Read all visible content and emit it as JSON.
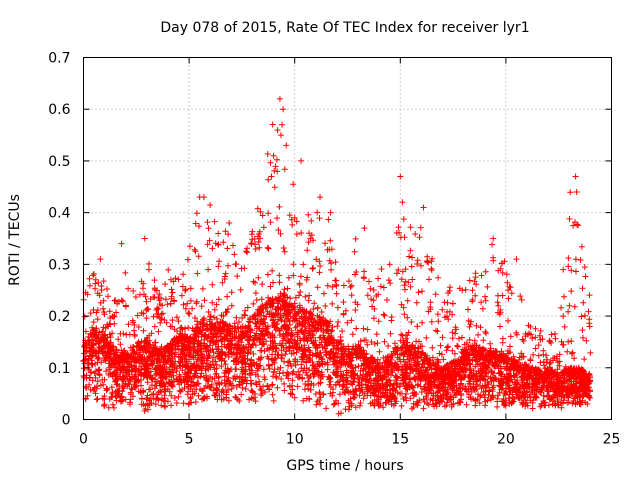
{
  "chart_data": {
    "type": "scatter",
    "title": "Day 078 of 2015, Rate Of TEC Index for receiver lyr1",
    "xlabel": "GPS time / hours",
    "ylabel": "ROTI / TECUs",
    "xlim": [
      0,
      25
    ],
    "ylim": [
      0,
      0.7
    ],
    "xticks": [
      0,
      5,
      10,
      15,
      20,
      25
    ],
    "yticks": [
      0,
      0.1,
      0.2,
      0.3,
      0.4,
      0.5,
      0.6,
      0.7
    ],
    "xtick_labels": [
      "0",
      "5",
      "10",
      "15",
      "20",
      "25"
    ],
    "ytick_labels": [
      "0",
      "0.1",
      "0.2",
      "0.3",
      "0.4",
      "0.5",
      "0.6",
      "0.7"
    ],
    "grid": true,
    "marker": "+",
    "color": "#ff0000",
    "data_extent_hours": [
      0,
      24
    ],
    "series": [
      {
        "name": "lyr1",
        "envelope": {
          "x": [
            0,
            0.5,
            1,
            1.5,
            2,
            2.5,
            3,
            3.5,
            4,
            4.5,
            5,
            5.5,
            6,
            6.5,
            7,
            7.5,
            8,
            8.5,
            9,
            9.5,
            10,
            10.5,
            11,
            11.5,
            12,
            12.5,
            13,
            13.5,
            14,
            14.5,
            15,
            15.5,
            16,
            16.5,
            17,
            17.5,
            18,
            18.5,
            19,
            19.5,
            20,
            20.5,
            21,
            21.5,
            22,
            22.5,
            23,
            23.5,
            24
          ],
          "typical": [
            0.13,
            0.16,
            0.15,
            0.12,
            0.12,
            0.13,
            0.14,
            0.12,
            0.13,
            0.15,
            0.14,
            0.17,
            0.18,
            0.17,
            0.16,
            0.16,
            0.18,
            0.2,
            0.21,
            0.22,
            0.2,
            0.19,
            0.18,
            0.17,
            0.14,
            0.12,
            0.13,
            0.11,
            0.1,
            0.11,
            0.14,
            0.13,
            0.12,
            0.1,
            0.09,
            0.1,
            0.12,
            0.13,
            0.12,
            0.12,
            0.11,
            0.1,
            0.09,
            0.09,
            0.09,
            0.08,
            0.09,
            0.09,
            0.08
          ],
          "max": [
            0.26,
            0.31,
            0.27,
            0.23,
            0.34,
            0.26,
            0.36,
            0.26,
            0.29,
            0.28,
            0.36,
            0.43,
            0.42,
            0.36,
            0.38,
            0.34,
            0.41,
            0.45,
            0.62,
            0.5,
            0.5,
            0.44,
            0.42,
            0.4,
            0.33,
            0.31,
            0.37,
            0.3,
            0.31,
            0.3,
            0.47,
            0.42,
            0.41,
            0.33,
            0.25,
            0.26,
            0.29,
            0.3,
            0.33,
            0.35,
            0.3,
            0.31,
            0.2,
            0.19,
            0.19,
            0.17,
            0.47,
            0.42,
            0.23
          ],
          "min": [
            0.04,
            0.03,
            0.02,
            0.02,
            0.03,
            0.02,
            0.01,
            0.02,
            0.02,
            0.02,
            0.02,
            0.02,
            0.03,
            0.03,
            0.02,
            0.03,
            0.03,
            0.03,
            0.03,
            0.03,
            0.03,
            0.02,
            0.02,
            0.02,
            0.01,
            0.01,
            0.02,
            0.02,
            0.02,
            0.02,
            0.02,
            0.02,
            0.02,
            0.02,
            0.02,
            0.02,
            0.02,
            0.02,
            0.02,
            0.02,
            0.02,
            0.02,
            0.02,
            0.02,
            0.02,
            0.02,
            0.02,
            0.02,
            0.03
          ]
        },
        "notable_points": [
          {
            "x": 9.3,
            "y": 0.62
          },
          {
            "x": 9.45,
            "y": 0.6
          },
          {
            "x": 9.4,
            "y": 0.57
          },
          {
            "x": 9.35,
            "y": 0.55
          },
          {
            "x": 9.0,
            "y": 0.51
          },
          {
            "x": 9.6,
            "y": 0.53
          },
          {
            "x": 10.3,
            "y": 0.5
          },
          {
            "x": 8.9,
            "y": 0.47
          },
          {
            "x": 15.0,
            "y": 0.47
          },
          {
            "x": 23.3,
            "y": 0.47
          },
          {
            "x": 23.35,
            "y": 0.44
          },
          {
            "x": 5.5,
            "y": 0.43
          },
          {
            "x": 5.7,
            "y": 0.43
          },
          {
            "x": 11.2,
            "y": 0.43
          },
          {
            "x": 15.1,
            "y": 0.42
          },
          {
            "x": 16.1,
            "y": 0.41
          },
          {
            "x": 10.0,
            "y": 0.39
          },
          {
            "x": 11.7,
            "y": 0.4
          },
          {
            "x": 6.9,
            "y": 0.38
          },
          {
            "x": 13.3,
            "y": 0.37
          },
          {
            "x": 2.9,
            "y": 0.35
          },
          {
            "x": 19.4,
            "y": 0.35
          },
          {
            "x": 1.8,
            "y": 0.34
          },
          {
            "x": 20.5,
            "y": 0.31
          },
          {
            "x": 14.5,
            "y": 0.3
          },
          {
            "x": 0.8,
            "y": 0.31
          }
        ]
      }
    ]
  }
}
